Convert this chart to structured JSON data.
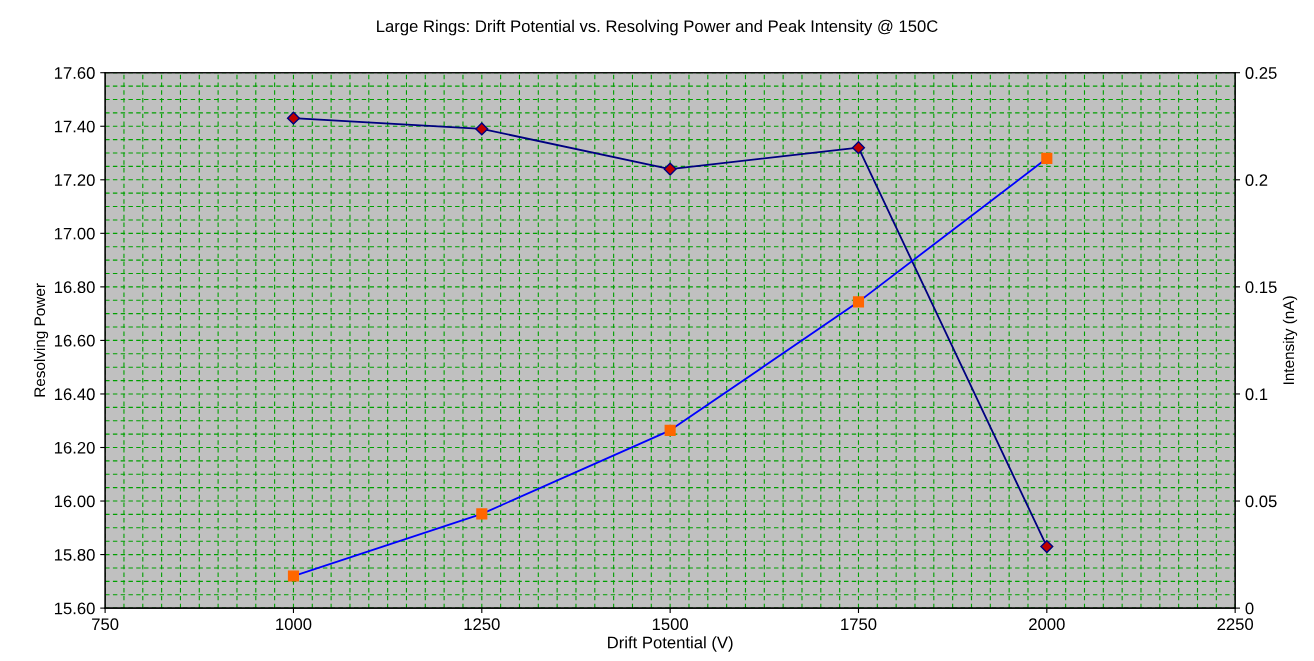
{
  "chart_data": {
    "type": "line",
    "title": "Large Rings: Drift Potential vs. Resolving Power and Peak Intensity @ 150C",
    "xlabel": "Drift Potential (V)",
    "ylabel": "Resolving Power",
    "y2label": "Intensity (nA)",
    "x": [
      1000,
      1250,
      1500,
      1750,
      2000
    ],
    "series": [
      {
        "color": "#000080",
        "marker": "diamond",
        "values": [
          17.43,
          17.39,
          17.24,
          17.32,
          15.83
        ]
      },
      {
        "color": "#0000ff",
        "marker": "square",
        "axis": "y2",
        "values": [
          0.015,
          0.044,
          0.083,
          0.143,
          0.21
        ]
      }
    ],
    "xlim": [
      750,
      2250
    ],
    "xticks": [
      750,
      1000,
      1250,
      1500,
      1750,
      2000,
      2250
    ],
    "ylim": [
      15.6,
      17.6
    ],
    "yticks": [
      {
        "value": 15.6,
        "label": "15.60"
      },
      {
        "value": 15.8,
        "label": "15.80"
      },
      {
        "value": 16.0,
        "label": "16.00"
      },
      {
        "value": 16.2,
        "label": "16.20"
      },
      {
        "value": 16.4,
        "label": "16.40"
      },
      {
        "value": 16.6,
        "label": "16.60"
      },
      {
        "value": 16.8,
        "label": "16.80"
      },
      {
        "value": 17.0,
        "label": "17.00"
      },
      {
        "value": 17.2,
        "label": "17.20"
      },
      {
        "value": 17.4,
        "label": "17.40"
      },
      {
        "value": 17.6,
        "label": "17.60"
      }
    ],
    "y2lim": [
      0,
      0.25
    ],
    "y2ticks": [
      0,
      0.05,
      0.1,
      0.15,
      0.2,
      0.25
    ],
    "grid": true
  }
}
